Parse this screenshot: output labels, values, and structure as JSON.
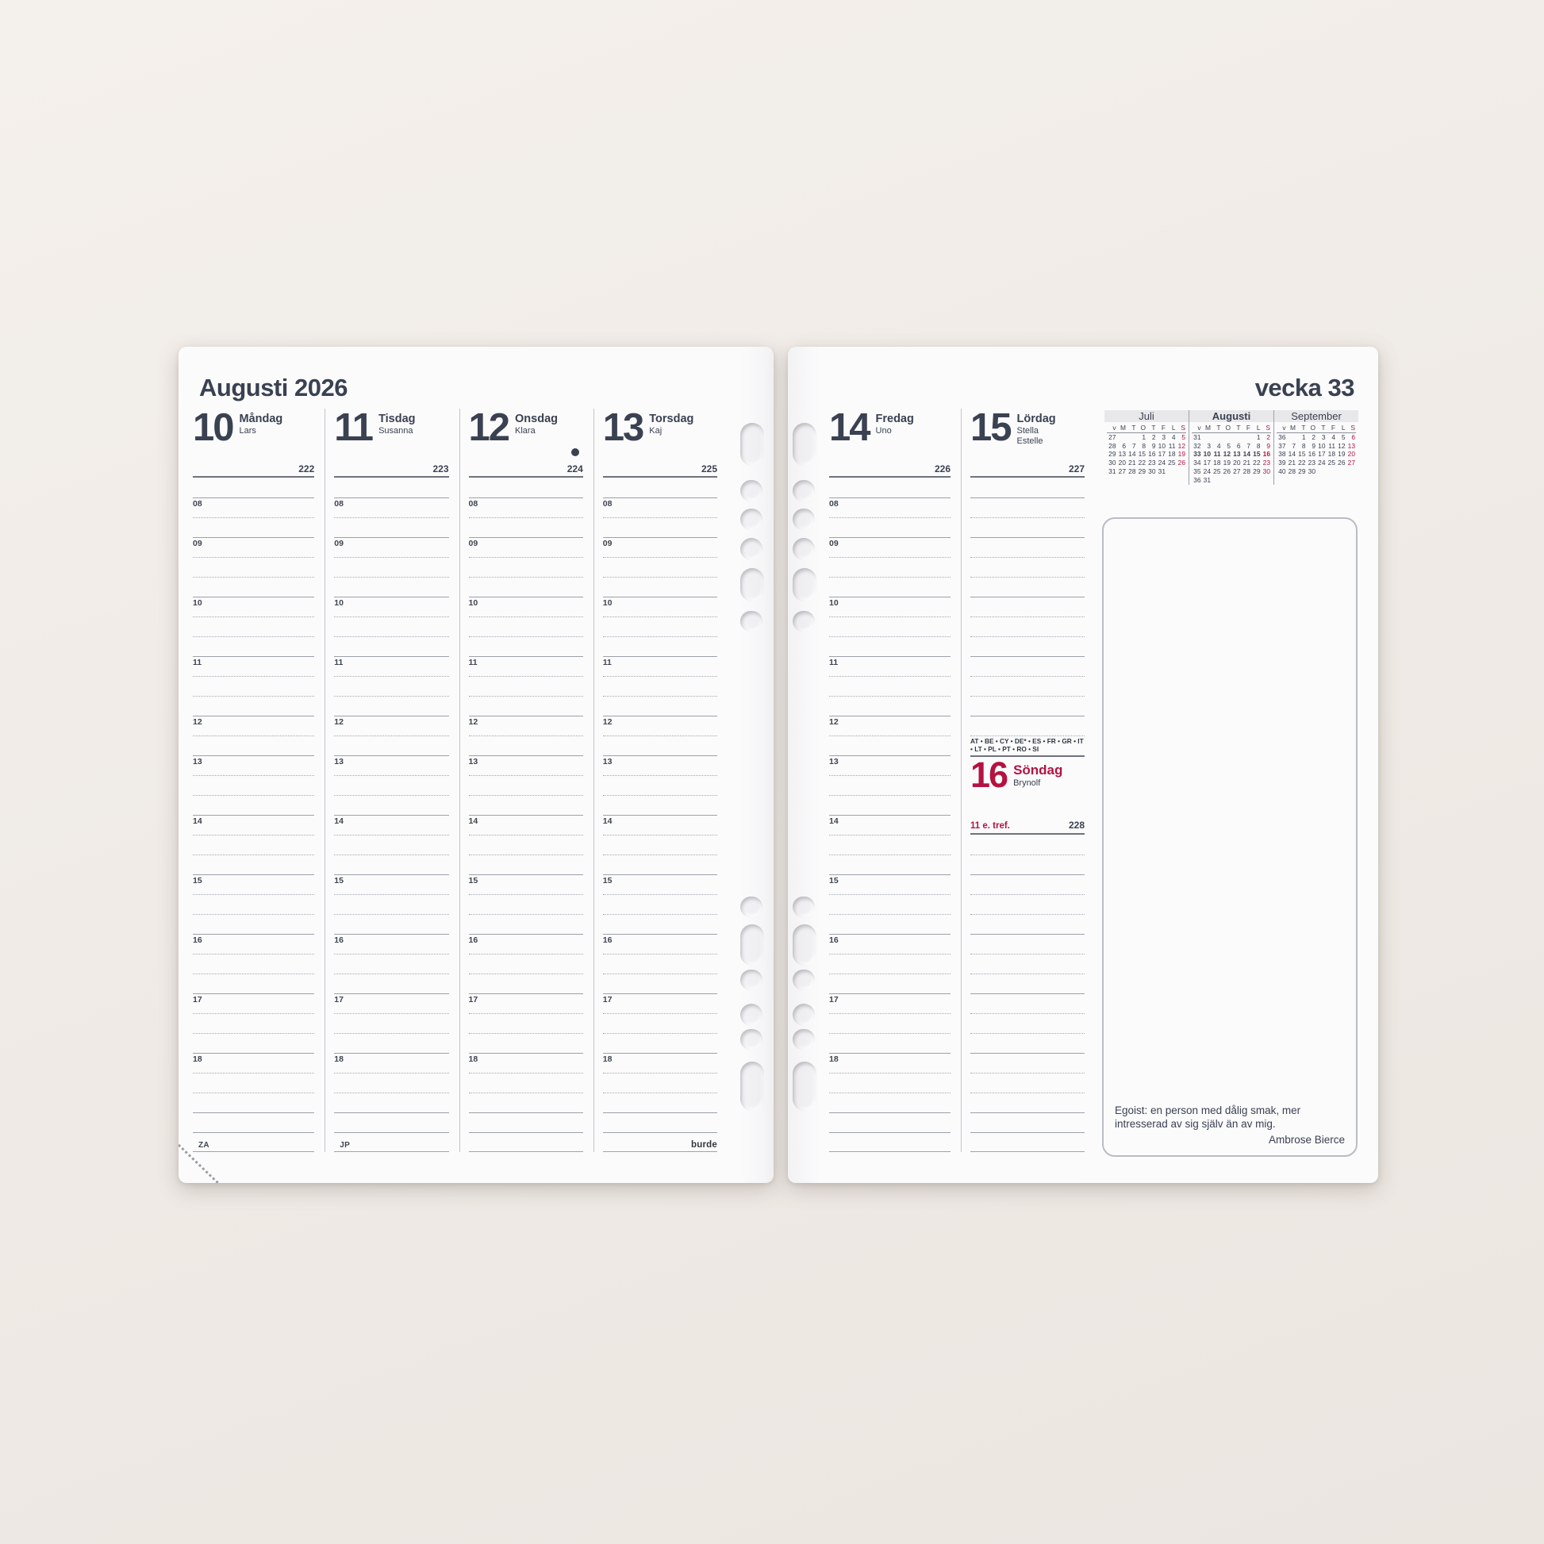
{
  "colors": {
    "accent_red": "#b41341",
    "ink": "#3a4151",
    "page": "#fbfbfc",
    "desk": "#f0ebe6"
  },
  "left_page": {
    "title": "Augusti 2026",
    "hour_labels": [
      "08",
      "09",
      "10",
      "11",
      "12",
      "13",
      "14",
      "15",
      "16",
      "17",
      "18"
    ],
    "days": [
      {
        "num": "10",
        "name": "Måndag",
        "namedays": [
          "Lars"
        ],
        "doy": "222",
        "hours": true,
        "bottom_label": "ZA"
      },
      {
        "num": "11",
        "name": "Tisdag",
        "namedays": [
          "Susanna"
        ],
        "doy": "223",
        "hours": true,
        "bottom_label": "JP"
      },
      {
        "num": "12",
        "name": "Onsdag",
        "namedays": [
          "Klara"
        ],
        "doy": "224",
        "hours": true,
        "moon": true
      },
      {
        "num": "13",
        "name": "Torsdag",
        "namedays": [
          "Kaj"
        ],
        "doy": "225",
        "hours": true,
        "brand_label": "burde"
      }
    ]
  },
  "right_page": {
    "title": "vecka 33",
    "days": [
      {
        "num": "14",
        "name": "Fredag",
        "namedays": [
          "Uno"
        ],
        "doy": "226",
        "hours": true
      },
      {
        "num": "15",
        "name": "Lördag",
        "namedays": [
          "Stella",
          "Estelle"
        ],
        "doy": "227",
        "hours": false,
        "saturday_special": true
      }
    ],
    "sunday": {
      "holiday_countries": "AT • BE • CY • DE* • ES • FR • GR • IT • LT • PL • PT • RO • SI",
      "num": "16",
      "name": "Söndag",
      "nameday": "Brynolf",
      "church_day": "11 e. tref.",
      "doy": "228"
    },
    "minical": {
      "weekday_headers": [
        "v",
        "M",
        "T",
        "O",
        "T",
        "F",
        "L",
        "S"
      ],
      "months": [
        {
          "name": "Juli",
          "bold": false,
          "weeks": [
            {
              "v": "27",
              "days": [
                "",
                "",
                "1",
                "2",
                "3",
                "4",
                "5"
              ]
            },
            {
              "v": "28",
              "days": [
                "6",
                "7",
                "8",
                "9",
                "10",
                "11",
                "12"
              ]
            },
            {
              "v": "29",
              "days": [
                "13",
                "14",
                "15",
                "16",
                "17",
                "18",
                "19"
              ]
            },
            {
              "v": "30",
              "days": [
                "20",
                "21",
                "22",
                "23",
                "24",
                "25",
                "26"
              ]
            },
            {
              "v": "31",
              "days": [
                "27",
                "28",
                "29",
                "30",
                "31",
                "",
                ""
              ]
            }
          ]
        },
        {
          "name": "Augusti",
          "bold": true,
          "weeks": [
            {
              "v": "31",
              "days": [
                "",
                "",
                "",
                "",
                "",
                "1",
                "2"
              ]
            },
            {
              "v": "32",
              "days": [
                "3",
                "4",
                "5",
                "6",
                "7",
                "8",
                "9"
              ]
            },
            {
              "v": "33",
              "bold": true,
              "days": [
                "10",
                "11",
                "12",
                "13",
                "14",
                "15",
                "16"
              ]
            },
            {
              "v": "34",
              "days": [
                "17",
                "18",
                "19",
                "20",
                "21",
                "22",
                "23"
              ]
            },
            {
              "v": "35",
              "days": [
                "24",
                "25",
                "26",
                "27",
                "28",
                "29",
                "30"
              ]
            },
            {
              "v": "36",
              "days": [
                "31",
                "",
                "",
                "",
                "",
                "",
                ""
              ]
            }
          ]
        },
        {
          "name": "September",
          "bold": false,
          "weeks": [
            {
              "v": "36",
              "days": [
                "",
                "1",
                "2",
                "3",
                "4",
                "5",
                "6"
              ]
            },
            {
              "v": "37",
              "days": [
                "7",
                "8",
                "9",
                "10",
                "11",
                "12",
                "13"
              ]
            },
            {
              "v": "38",
              "days": [
                "14",
                "15",
                "16",
                "17",
                "18",
                "19",
                "20"
              ]
            },
            {
              "v": "39",
              "days": [
                "21",
                "22",
                "23",
                "24",
                "25",
                "26",
                "27"
              ]
            },
            {
              "v": "40",
              "days": [
                "28",
                "29",
                "30",
                "",
                "",
                "",
                ""
              ]
            }
          ]
        }
      ]
    },
    "notes": {
      "quote": "Egoist: en person med dålig smak, mer intresserad av sig själv än av mig.",
      "author": "Ambrose Bierce"
    }
  }
}
